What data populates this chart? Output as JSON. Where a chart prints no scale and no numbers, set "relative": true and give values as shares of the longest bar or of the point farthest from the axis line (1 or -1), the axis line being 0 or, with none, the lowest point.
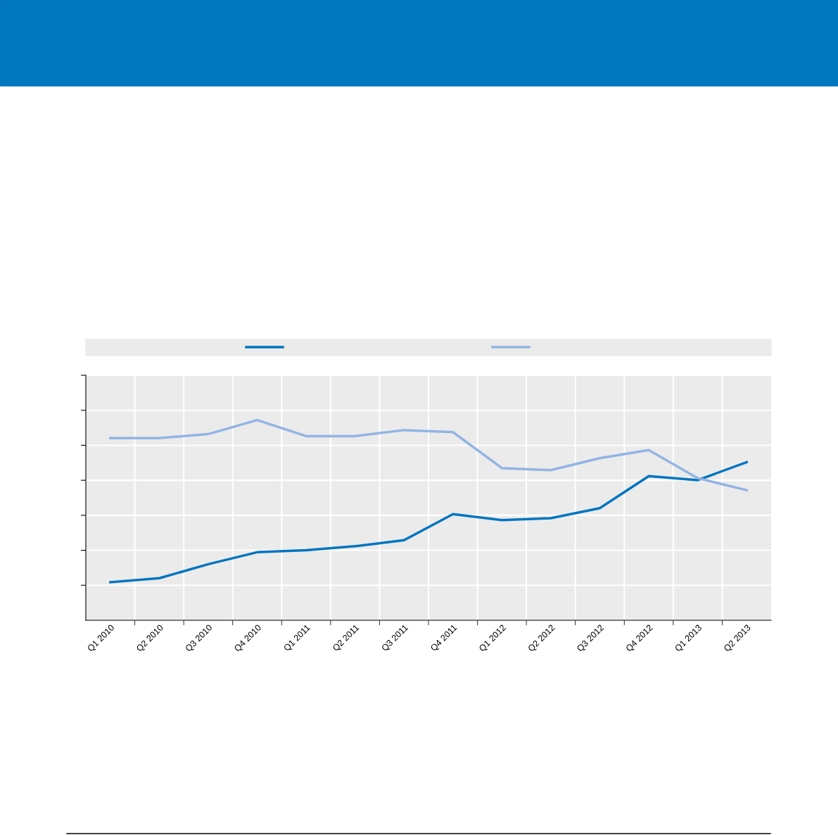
{
  "chart_data": {
    "type": "line",
    "relative": true,
    "grid": true,
    "categories": [
      "Q1 2010",
      "Q2 2010",
      "Q3 2010",
      "Q4 2010",
      "Q1 2011",
      "Q2 2011",
      "Q3 2011",
      "Q4 2011",
      "Q1 2012",
      "Q2 2012",
      "Q3 2012",
      "Q4 2012",
      "Q1 2013",
      "Q2 2013"
    ],
    "series": [
      {
        "color": "#0075bf",
        "values": [
          0.19,
          0.21,
          0.28,
          0.34,
          0.35,
          0.37,
          0.4,
          0.53,
          0.5,
          0.51,
          0.56,
          0.72,
          0.7,
          0.79
        ]
      },
      {
        "color": "#92b4e3",
        "values": [
          0.91,
          0.91,
          0.93,
          1.0,
          0.92,
          0.92,
          0.95,
          0.94,
          0.76,
          0.75,
          0.81,
          0.85,
          0.71,
          0.65
        ]
      }
    ]
  }
}
